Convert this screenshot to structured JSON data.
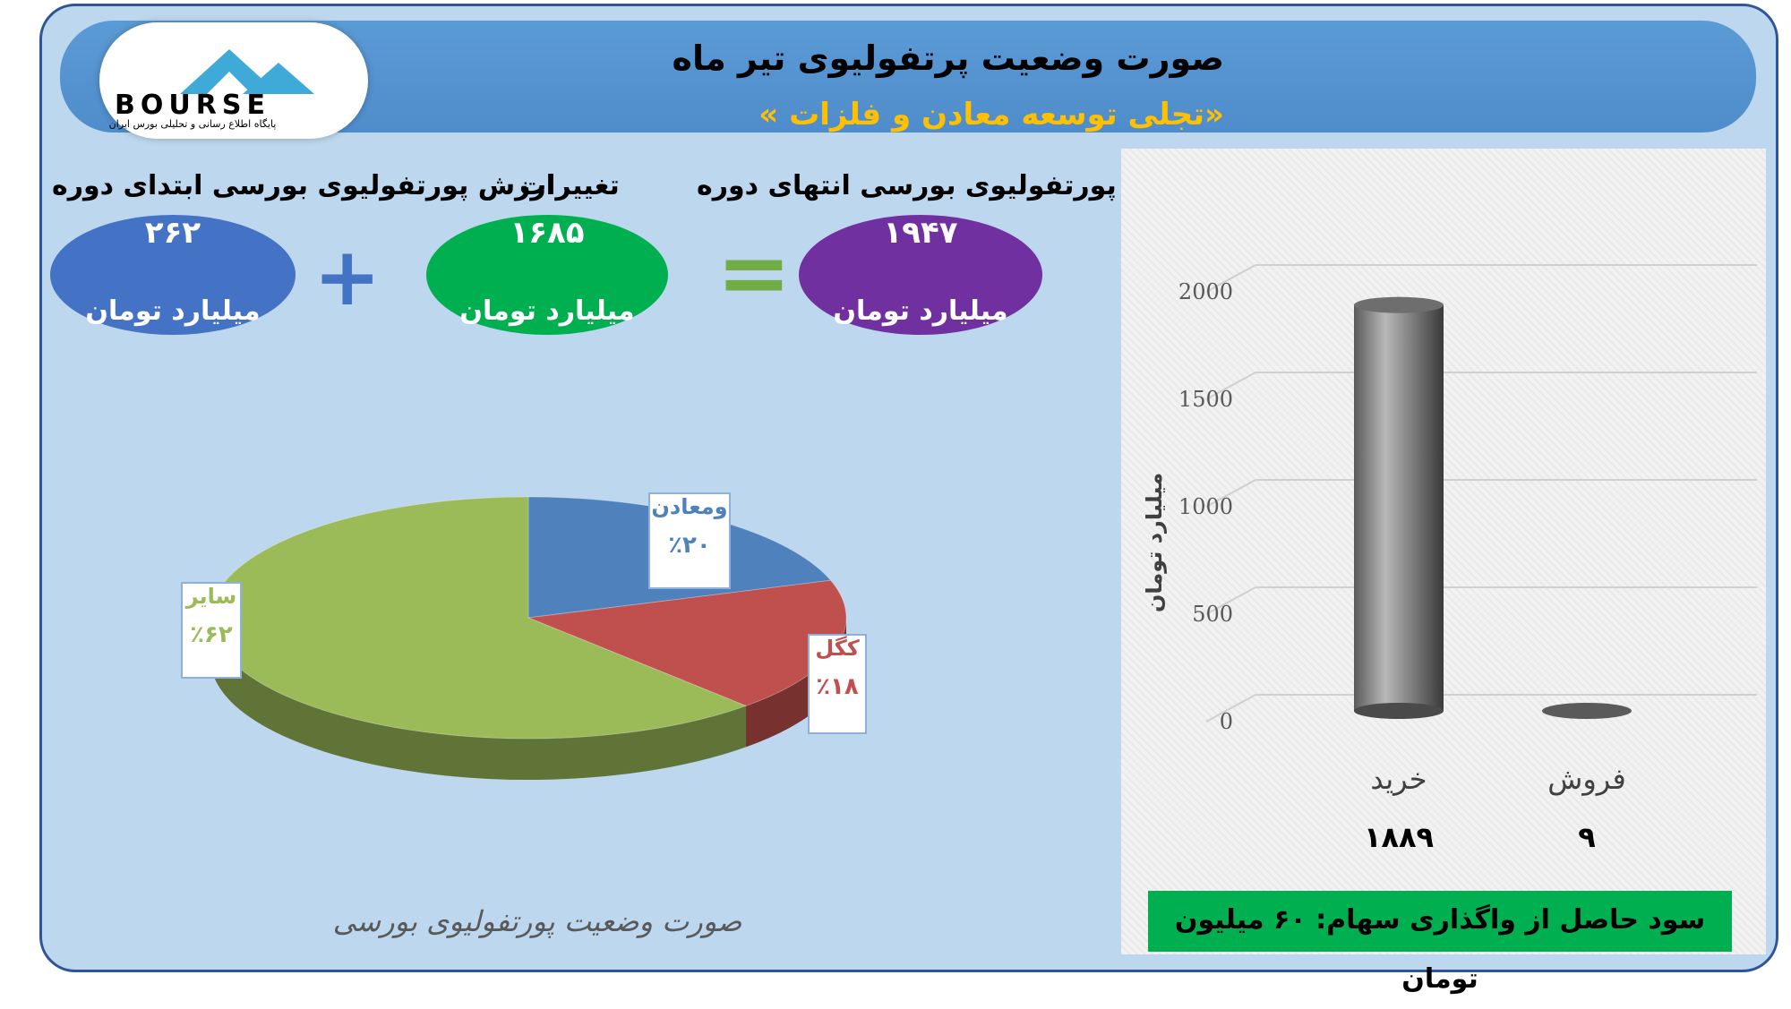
{
  "header": {
    "title": "صورت وضعیت پرتفولیوی تیر ماه",
    "subtitle": "«تجلی توسعه معادن و فلزات »"
  },
  "logo": {
    "brand": "BOURSE",
    "tagline": "پایگاه اطلاع رسانی و تحلیلی بورس ایران"
  },
  "summary": {
    "start": {
      "label": "ارزش پورتفولیوی بورسی ابتدای دوره",
      "value": "۲۶۲",
      "unit": "میلیارد تومان"
    },
    "change": {
      "label": "تغییرات",
      "value": "۱۶۸۵",
      "unit": "میلیارد تومان"
    },
    "end": {
      "label": "ارزش پورتفولیوی بورسی انتهای دوره",
      "value": "۱۹۴۷",
      "unit": "میلیارد تومان"
    },
    "plus_sign": "+",
    "equals_sign": "="
  },
  "profit_box": "سود حاصل از واگذاری سهام: ۶۰ میلیون تومان",
  "colors": {
    "blue": "#4472c4",
    "green": "#00b050",
    "purple": "#7030a0",
    "pie_blue": "#4f81bd",
    "pie_red": "#c0504d",
    "pie_green": "#9bbb59"
  },
  "chart_data": [
    {
      "type": "pie",
      "title": "صورت وضعیت پورتفولیوی بورسی",
      "slices": [
        {
          "name": "ومعادن",
          "label": "٪۲۰",
          "value": 20,
          "color": "#4f81bd"
        },
        {
          "name": "کگل",
          "label": "٪۱۸",
          "value": 18,
          "color": "#c0504d"
        },
        {
          "name": "سایر",
          "label": "٪۶۲",
          "value": 62,
          "color": "#9bbb59"
        }
      ]
    },
    {
      "type": "bar",
      "ylabel": "میلیارد تومان",
      "ylim": [
        0,
        2000
      ],
      "yticks": [
        0,
        500,
        1000,
        1500,
        2000
      ],
      "categories": [
        "خرید",
        "فروش"
      ],
      "values": [
        1889,
        9
      ],
      "value_labels": [
        "۱۸۸۹",
        "۹"
      ]
    }
  ]
}
